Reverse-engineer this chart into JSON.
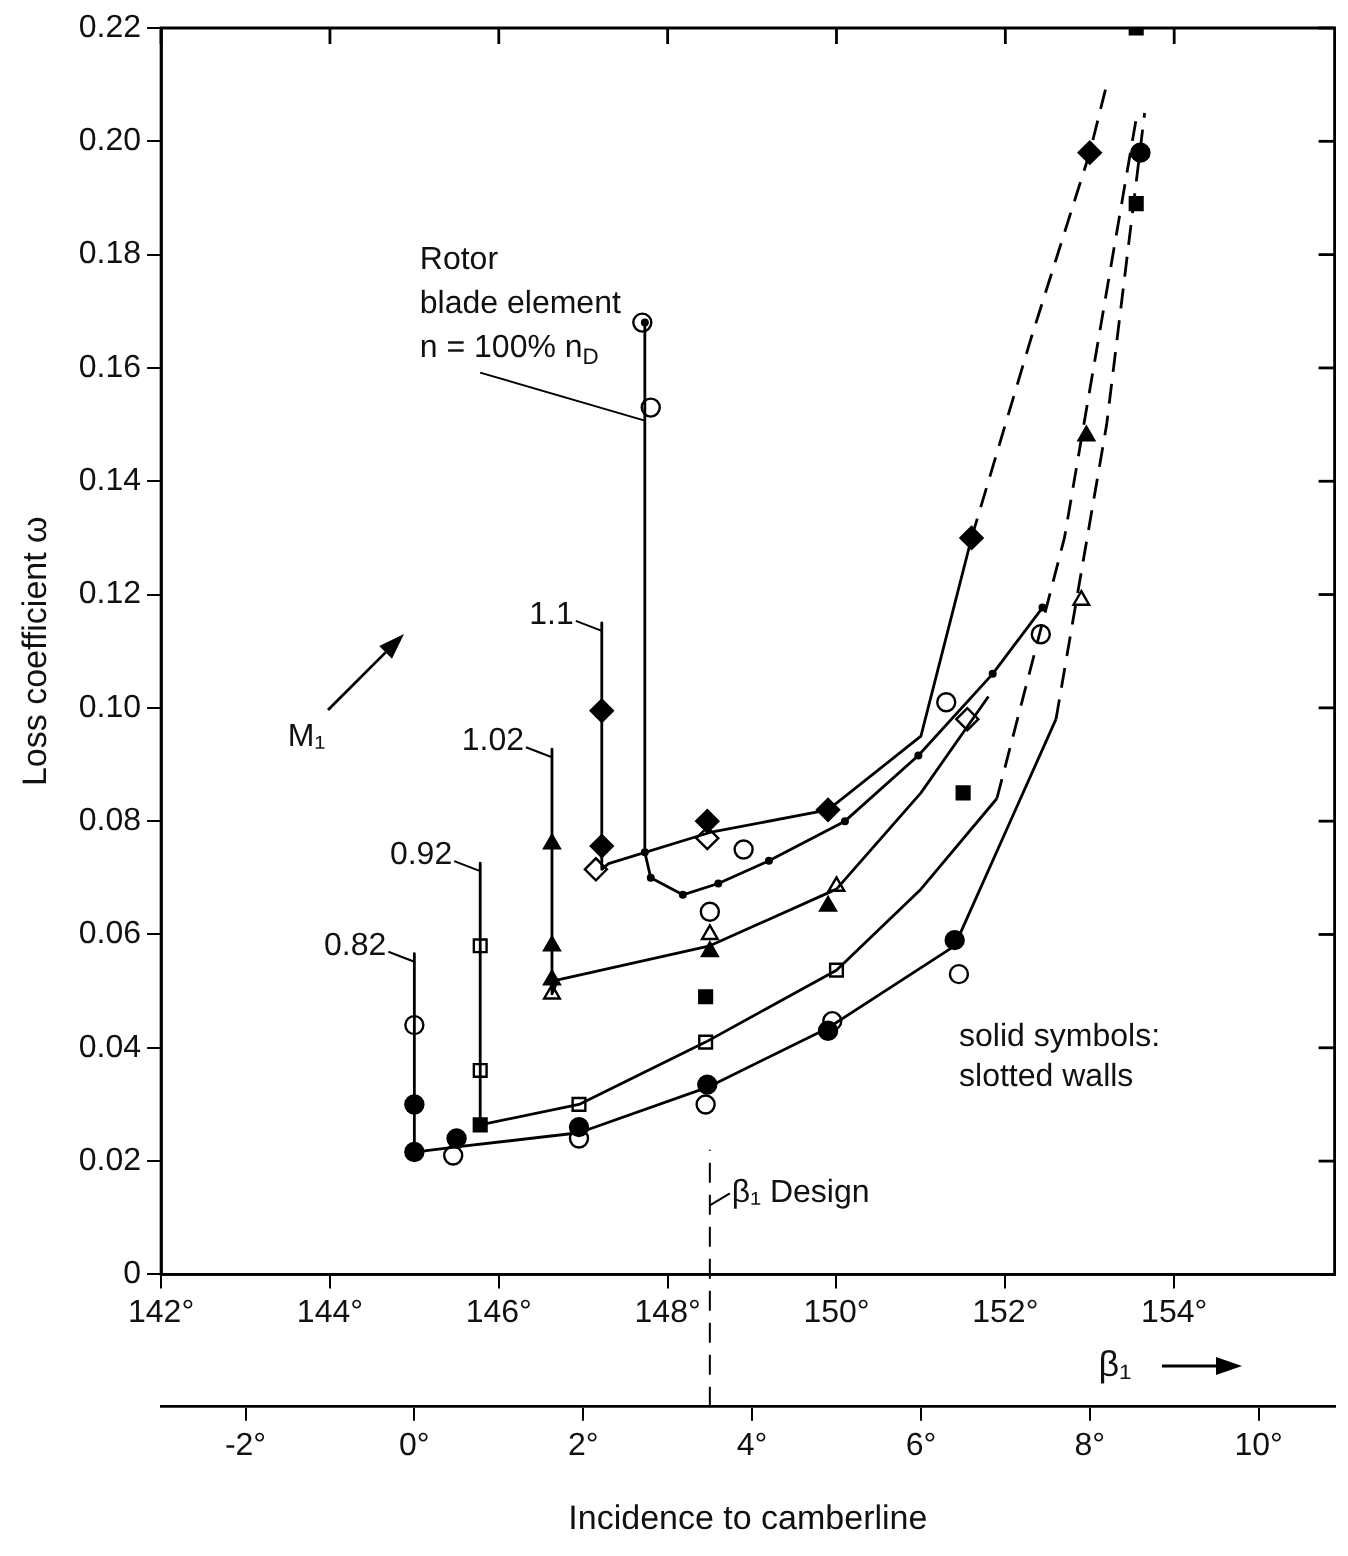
{
  "chart_data": {
    "type": "line",
    "xlabel": "β₁",
    "x2label": "Incidence to camberline",
    "ylabel": "Loss coefficient ω",
    "xlim": [
      142,
      155.9
    ],
    "xticks": [
      {
        "value": 142,
        "label": "142°"
      },
      {
        "value": 144,
        "label": "144°"
      },
      {
        "value": 146,
        "label": "146°"
      },
      {
        "value": 148,
        "label": "148°"
      },
      {
        "value": 150,
        "label": "150°"
      },
      {
        "value": 152,
        "label": "152°"
      },
      {
        "value": 154,
        "label": "154°"
      }
    ],
    "x2lim": [
      -3,
      10.9
    ],
    "x2ticks": [
      {
        "value": -2,
        "label": "-2°"
      },
      {
        "value": 0,
        "label": "0°"
      },
      {
        "value": 2,
        "label": "2°"
      },
      {
        "value": 4,
        "label": "4°"
      },
      {
        "value": 6,
        "label": "6°"
      },
      {
        "value": 8,
        "label": "8°"
      },
      {
        "value": 10,
        "label": "10°"
      }
    ],
    "ylim": [
      0,
      0.22
    ],
    "yticks": [
      0,
      {
        "value": 0.02,
        "label": "0.02"
      },
      {
        "value": 0.04,
        "label": "0.04"
      },
      {
        "value": 0.06,
        "label": "0.06"
      },
      {
        "value": 0.08,
        "label": "0.08"
      },
      {
        "value": 0.1,
        "label": "0.10"
      },
      {
        "value": 0.12,
        "label": "0.12"
      },
      {
        "value": 0.14,
        "label": "0.14"
      },
      {
        "value": 0.16,
        "label": "0.16"
      },
      {
        "value": 0.18,
        "label": "0.18"
      },
      {
        "value": 0.2,
        "label": "0.20"
      },
      {
        "value": 0.22,
        "label": "0.22"
      }
    ],
    "legend": "left",
    "series": [
      {
        "name": "1.1",
        "color": "#000000",
        "marker": "none",
        "line_style": "solid",
        "x": [
          147.22,
          147.22,
          147.3,
          148.5,
          149.9,
          151.0,
          151.6
        ],
        "values": [
          0.115,
          0.0715,
          0.0725,
          0.078,
          0.082,
          0.095,
          0.13
        ]
      },
      {
        "color": "#000000",
        "marker": "none",
        "line_style": "dashed",
        "x": [
          151.6,
          152.3,
          153.0,
          153.2
        ],
        "values": [
          0.13,
          0.165,
          0.198,
          0.21
        ]
      },
      {
        "name": "1.02",
        "color": "#000000",
        "marker": "none",
        "line_style": "solid",
        "x": [
          146.63,
          146.63,
          146.7,
          148.5,
          150.0,
          151.0,
          151.8
        ],
        "values": [
          0.0927,
          0.0495,
          0.052,
          0.058,
          0.068,
          0.085,
          0.102
        ]
      },
      {
        "name": "0.92",
        "color": "#000000",
        "marker": "none",
        "line_style": "solid",
        "x": [
          145.78,
          145.78,
          146.95,
          148.45,
          150.0,
          151.0,
          151.9
        ],
        "values": [
          0.0726,
          0.0264,
          0.03,
          0.041,
          0.0537,
          0.068,
          0.084
        ]
      },
      {
        "color": "#000000",
        "marker": "none",
        "line_style": "dashed",
        "x": [
          151.9,
          152.7,
          153.55
        ],
        "values": [
          0.084,
          0.13,
          0.204
        ]
      },
      {
        "name": "0.82",
        "color": "#000000",
        "marker": "none",
        "line_style": "solid",
        "x": [
          145.0,
          145.0,
          145.5,
          146.95,
          148.47,
          149.9,
          151.4,
          152.6
        ],
        "values": [
          0.0566,
          0.0216,
          0.0225,
          0.025,
          0.033,
          0.0435,
          0.058,
          0.098
        ]
      },
      {
        "color": "#000000",
        "marker": "none",
        "line_style": "dashed",
        "x": [
          152.6,
          153.2,
          153.65
        ],
        "values": [
          0.098,
          0.15,
          0.205
        ]
      },
      {
        "name": "Rotor\nblade element\nn = 100% n$_{D}$",
        "color": "#000000",
        "marker": "circle",
        "line_style": "solid",
        "x": [
          147.73,
          147.73,
          147.8,
          148.18,
          148.6,
          149.2,
          150.1,
          150.97,
          151.85,
          152.44
        ],
        "values": [
          0.168,
          0.0745,
          0.07,
          0.067,
          0.069,
          0.073,
          0.08,
          0.0916,
          0.106,
          0.1177
        ]
      },
      {
        "type": "scatter",
        "color": "#000000",
        "marker": "circle",
        "x": [
          145.0,
          145.0,
          145.5,
          146.95,
          148.47,
          149.9,
          151.4,
          153.6
        ],
        "values": [
          0.03,
          0.0216,
          0.024,
          0.026,
          0.0335,
          0.043,
          0.059,
          0.198
        ]
      },
      {
        "type": "scatter",
        "color": "#ffffff",
        "marker": "circle",
        "x": [
          145.0,
          145.46,
          146.95,
          148.45,
          149.95,
          151.45
        ],
        "values": [
          0.044,
          0.021,
          0.024,
          0.03,
          0.0447,
          0.053
        ]
      },
      {
        "type": "scatter",
        "color": "#000000",
        "marker": "square",
        "x": [
          145.78,
          148.45,
          151.5,
          153.55,
          153.55
        ],
        "values": [
          0.0264,
          0.049,
          0.085,
          0.189,
          0.22
        ]
      },
      {
        "type": "scatter",
        "color": "#ffffff",
        "marker": "square",
        "x": [
          145.78,
          145.78,
          146.95,
          148.45,
          150.0
        ],
        "values": [
          0.058,
          0.036,
          0.03,
          0.041,
          0.0537
        ]
      },
      {
        "type": "scatter",
        "color": "#000000",
        "marker": "triangle",
        "x": [
          146.63,
          146.63,
          146.63,
          148.5,
          149.9,
          152.96
        ],
        "values": [
          0.076,
          0.058,
          0.052,
          0.057,
          0.065,
          0.148
        ]
      },
      {
        "type": "scatter",
        "color": "#ffffff",
        "marker": "triangle",
        "x": [
          146.63,
          148.5,
          150.0,
          152.9
        ],
        "values": [
          0.0495,
          0.06,
          0.0685,
          0.119
        ]
      },
      {
        "type": "scatter",
        "color": "#000000",
        "marker": "diamond",
        "x": [
          147.22,
          147.22,
          148.47,
          149.9,
          151.6,
          153.0
        ],
        "values": [
          0.0995,
          0.0756,
          0.08,
          0.082,
          0.13,
          0.198
        ]
      },
      {
        "type": "scatter",
        "color": "#ffffff",
        "marker": "diamond",
        "x": [
          147.15,
          148.47,
          151.55
        ],
        "values": [
          0.0715,
          0.077,
          0.098
        ]
      },
      {
        "type": "scatter",
        "color": "#ffffff",
        "marker": "circle",
        "x": [
          147.7,
          147.8,
          148.9,
          148.5,
          151.3,
          152.42
        ],
        "values": [
          0.168,
          0.153,
          0.075,
          0.064,
          0.101,
          0.113
        ]
      }
    ],
    "ref_lines": [
      {
        "axis": "x",
        "value": 148.5,
        "label": "β₁ Design",
        "line_style": "dashed"
      }
    ],
    "annotations": [
      "M₁",
      "solid symbols:\nslotted walls"
    ]
  }
}
